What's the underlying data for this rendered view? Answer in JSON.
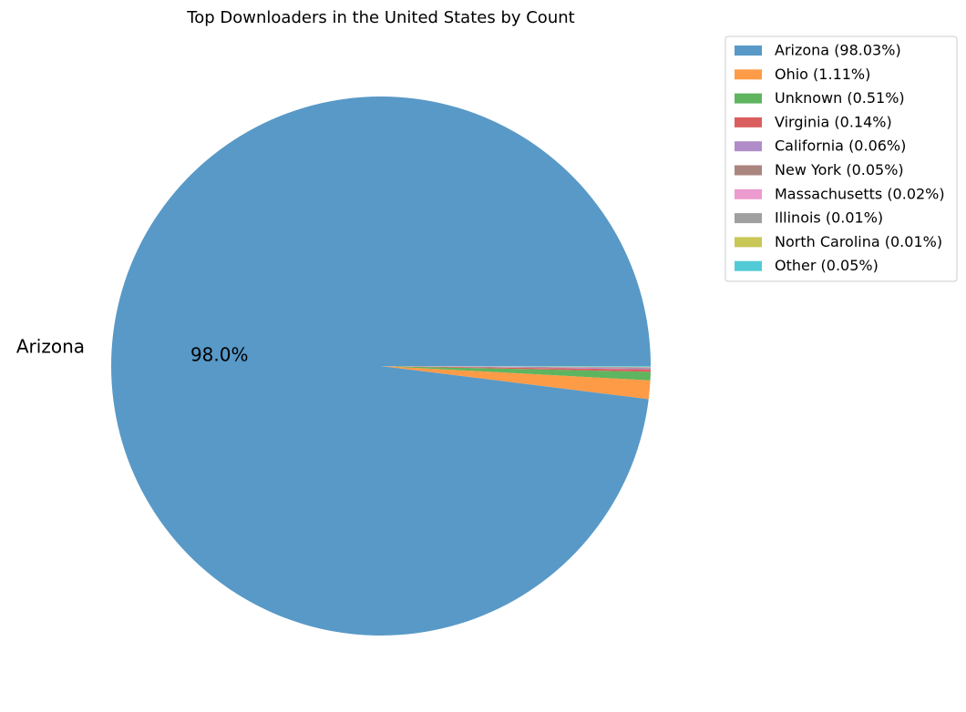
{
  "chart_data": {
    "type": "pie",
    "title": "Top Downloaders in the United States by Count",
    "slices": [
      {
        "label": "Arizona",
        "value": 98.03,
        "legend": "Arizona (98.03%)",
        "color": "#5899c7",
        "show_label": true,
        "pct_text": "98.0%"
      },
      {
        "label": "Ohio",
        "value": 1.11,
        "legend": "Ohio (1.11%)",
        "color": "#fe9b47",
        "show_label": false,
        "pct_text": ""
      },
      {
        "label": "Unknown",
        "value": 0.51,
        "legend": "Unknown (0.51%)",
        "color": "#5fb45f",
        "show_label": false,
        "pct_text": ""
      },
      {
        "label": "Virginia",
        "value": 0.14,
        "legend": "Virginia (0.14%)",
        "color": "#da5e5e",
        "show_label": false,
        "pct_text": ""
      },
      {
        "label": "California",
        "value": 0.06,
        "legend": "California (0.06%)",
        "color": "#b08dc9",
        "show_label": false,
        "pct_text": ""
      },
      {
        "label": "New York",
        "value": 0.05,
        "legend": "New York (0.05%)",
        "color": "#ab867f",
        "show_label": false,
        "pct_text": ""
      },
      {
        "label": "Massachusetts",
        "value": 0.02,
        "legend": "Massachusetts (0.02%)",
        "color": "#ec9bcf",
        "show_label": false,
        "pct_text": ""
      },
      {
        "label": "Illinois",
        "value": 0.01,
        "legend": "Illinois (0.01%)",
        "color": "#a0a0a0",
        "show_label": false,
        "pct_text": ""
      },
      {
        "label": "North Carolina",
        "value": 0.01,
        "legend": "North Carolina (0.01%)",
        "color": "#c9c756",
        "show_label": false,
        "pct_text": ""
      },
      {
        "label": "Other",
        "value": 0.05,
        "legend": "Other (0.05%)",
        "color": "#52cbd6",
        "show_label": false,
        "pct_text": ""
      }
    ],
    "start_angle": "0° (3 o'clock)",
    "direction": "counterclockwise",
    "legend_position": "upper-right outside"
  }
}
